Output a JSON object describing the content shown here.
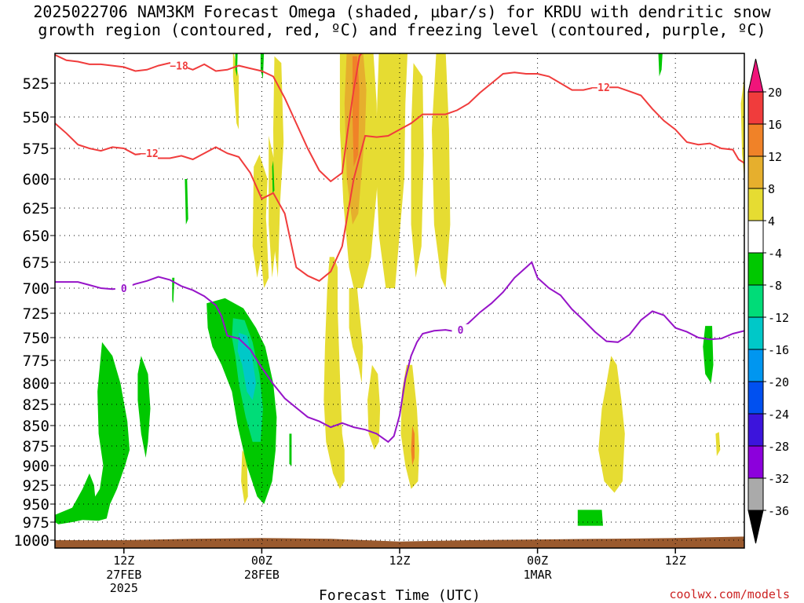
{
  "title": {
    "line1": "2025022706 NAM3KM Forecast Omega (shaded, µbar/s) for KRDU with dendritic snow",
    "line2": "growth region (contoured, red, ºC) and freezing level (contoured, purple, ºC)"
  },
  "credit": "coolwx.com/models",
  "colors": {
    "omega_positive": [
      "#ffffff",
      "#e6dc32",
      "#e6af2d",
      "#f08228",
      "#f03c3c",
      "#f0147a"
    ],
    "omega_negative": [
      "#00c800",
      "#00dc78",
      "#00c8c8",
      "#0096f0",
      "#0050f0",
      "#3c14dc",
      "#8c00dc",
      "#aaaaaa",
      "#000000"
    ],
    "dgz_contour": "#f03c3c",
    "freezing_contour": "#9614c8",
    "ground": "#9a5a2e"
  },
  "chart_data": {
    "type": "heatmap",
    "title": "2025022706 NAM3KM Forecast Omega (shaded, µbar/s) for KRDU with dendritic snow growth region (contoured, red, ºC) and freezing level (contoured, purple, ºC)",
    "xlabel": "Forecast Time (UTC)",
    "ylabel": "",
    "x_range_hours": [
      6,
      66
    ],
    "x_ticks": [
      {
        "hour": 12,
        "label": "12Z",
        "sub": "27FEB",
        "sub2": "2025"
      },
      {
        "hour": 24,
        "label": "00Z",
        "sub": "28FEB",
        "sub2": ""
      },
      {
        "hour": 36,
        "label": "12Z",
        "sub": "",
        "sub2": ""
      },
      {
        "hour": 48,
        "label": "00Z",
        "sub": "1MAR",
        "sub2": ""
      },
      {
        "hour": 60,
        "label": "12Z",
        "sub": "",
        "sub2": ""
      }
    ],
    "y_ticks": [
      525,
      550,
      575,
      600,
      625,
      650,
      675,
      700,
      725,
      750,
      775,
      800,
      825,
      850,
      875,
      900,
      925,
      950,
      975,
      1000
    ],
    "y_range_hpa": [
      500,
      1008
    ],
    "grid": true,
    "colorbar": {
      "levels": [
        -36,
        -32,
        -28,
        -24,
        -20,
        -16,
        -12,
        -8,
        -4,
        4,
        8,
        12,
        16,
        20
      ],
      "labels": [
        "20",
        "16",
        "12",
        "8",
        "4",
        "-4",
        "-8",
        "-12",
        "-16",
        "-20",
        "-24",
        "-28",
        "-32",
        "-36"
      ]
    },
    "contours": [
      {
        "name": "-18",
        "label": "−18",
        "color": "red",
        "points": [
          [
            6,
            504
          ],
          [
            7,
            508
          ],
          [
            8,
            509
          ],
          [
            9,
            511
          ],
          [
            10,
            511
          ],
          [
            11,
            512
          ],
          [
            12,
            513
          ],
          [
            13,
            516
          ],
          [
            14,
            515
          ],
          [
            15,
            512
          ],
          [
            16,
            510
          ],
          [
            17,
            512
          ],
          [
            18,
            515
          ],
          [
            19,
            511
          ],
          [
            20,
            516
          ],
          [
            21,
            515
          ],
          [
            22,
            512
          ],
          [
            23,
            514
          ],
          [
            24,
            516
          ],
          [
            25,
            520
          ],
          [
            26,
            536
          ],
          [
            27,
            555
          ],
          [
            28,
            575
          ],
          [
            29,
            593
          ],
          [
            30,
            602
          ],
          [
            31,
            595
          ],
          [
            31.5,
            560
          ],
          [
            32,
            530
          ],
          [
            32.5,
            505
          ],
          [
            33,
            499
          ]
        ]
      },
      {
        "name": "-12",
        "label": "−12",
        "color": "red",
        "points": [
          [
            6,
            555
          ],
          [
            7,
            563
          ],
          [
            8,
            572
          ],
          [
            9,
            575
          ],
          [
            10,
            577
          ],
          [
            11,
            574
          ],
          [
            12,
            575
          ],
          [
            13,
            580
          ],
          [
            14,
            579
          ],
          [
            15,
            583
          ],
          [
            16,
            583
          ],
          [
            17,
            581
          ],
          [
            18,
            584
          ],
          [
            19,
            579
          ],
          [
            20,
            574
          ],
          [
            21,
            579
          ],
          [
            22,
            582
          ],
          [
            23,
            595
          ],
          [
            24,
            617
          ],
          [
            25,
            612
          ],
          [
            26,
            630
          ],
          [
            27,
            680
          ],
          [
            28,
            688
          ],
          [
            29,
            693
          ],
          [
            30,
            684
          ],
          [
            31,
            660
          ],
          [
            32,
            600
          ],
          [
            33,
            565
          ],
          [
            34,
            566
          ],
          [
            35,
            565
          ],
          [
            36,
            560
          ],
          [
            37,
            555
          ],
          [
            38,
            548
          ],
          [
            39,
            548
          ],
          [
            40,
            548
          ],
          [
            41,
            545
          ],
          [
            42,
            540
          ],
          [
            43,
            532
          ],
          [
            44,
            525
          ],
          [
            45,
            518
          ],
          [
            46,
            517
          ],
          [
            47,
            518
          ],
          [
            48,
            518
          ],
          [
            49,
            520
          ],
          [
            50,
            525
          ],
          [
            51,
            530
          ],
          [
            52,
            530
          ],
          [
            53,
            528
          ],
          [
            54,
            528
          ],
          [
            55,
            528
          ],
          [
            56,
            531
          ],
          [
            57,
            534
          ],
          [
            58,
            544
          ],
          [
            59,
            553
          ],
          [
            60,
            560
          ],
          [
            61,
            570
          ],
          [
            62,
            572
          ],
          [
            63,
            571
          ],
          [
            64,
            575
          ],
          [
            65,
            576
          ],
          [
            65.5,
            584
          ],
          [
            66,
            587
          ]
        ]
      },
      {
        "name": "0",
        "label": "0",
        "color": "purple",
        "points": [
          [
            6,
            694
          ],
          [
            7,
            694
          ],
          [
            8,
            694
          ],
          [
            9,
            697
          ],
          [
            10,
            700
          ],
          [
            11,
            701
          ],
          [
            12,
            700
          ],
          [
            13,
            696
          ],
          [
            14,
            693
          ],
          [
            15,
            689
          ],
          [
            16,
            692
          ],
          [
            17,
            698
          ],
          [
            18,
            702
          ],
          [
            19,
            708
          ],
          [
            20,
            717
          ],
          [
            20.5,
            728
          ],
          [
            21,
            748
          ],
          [
            22,
            751
          ],
          [
            23,
            763
          ],
          [
            24,
            783
          ],
          [
            25,
            801
          ],
          [
            26,
            818
          ],
          [
            27,
            829
          ],
          [
            28,
            840
          ],
          [
            29,
            845
          ],
          [
            30,
            852
          ],
          [
            31,
            847
          ],
          [
            32,
            852
          ],
          [
            33,
            855
          ],
          [
            34,
            860
          ],
          [
            35,
            870
          ],
          [
            35.5,
            863
          ],
          [
            36,
            838
          ],
          [
            36.5,
            795
          ],
          [
            37,
            770
          ],
          [
            37.5,
            755
          ],
          [
            38,
            746
          ],
          [
            39,
            743
          ],
          [
            40,
            742
          ],
          [
            41,
            744
          ],
          [
            42,
            735
          ],
          [
            43,
            724
          ],
          [
            44,
            715
          ],
          [
            45,
            704
          ],
          [
            46,
            690
          ],
          [
            47,
            680
          ],
          [
            47.5,
            675
          ],
          [
            48,
            690
          ],
          [
            49,
            700
          ],
          [
            50,
            707
          ],
          [
            51,
            721
          ],
          [
            52,
            732
          ],
          [
            53,
            744
          ],
          [
            54,
            754
          ],
          [
            55,
            755
          ],
          [
            56,
            747
          ],
          [
            57,
            732
          ],
          [
            58,
            723
          ],
          [
            59,
            727
          ],
          [
            60,
            740
          ],
          [
            61,
            744
          ],
          [
            62,
            750
          ],
          [
            63,
            752
          ],
          [
            64,
            751
          ],
          [
            65,
            746
          ],
          [
            66,
            743
          ]
        ]
      }
    ],
    "omega_shading": [
      {
        "value_ubar_s": 4,
        "color": "yellow",
        "description": "weak rising/sinking region",
        "cells": [
          [
            23,
            645
          ],
          [
            31,
            780
          ],
          [
            39,
            560
          ],
          [
            54,
            860
          ]
        ]
      },
      {
        "value_ubar_s": -4,
        "color": "green",
        "cells": [
          [
            7,
            960
          ],
          [
            12,
            810
          ],
          [
            24,
            780
          ]
        ]
      },
      {
        "value_ubar_s": -12,
        "color": "cyan",
        "cells": [
          [
            24,
            770
          ]
        ]
      },
      {
        "value_ubar_s": 12,
        "color": "orange",
        "cells": [
          [
            32,
            560
          ]
        ]
      }
    ]
  }
}
